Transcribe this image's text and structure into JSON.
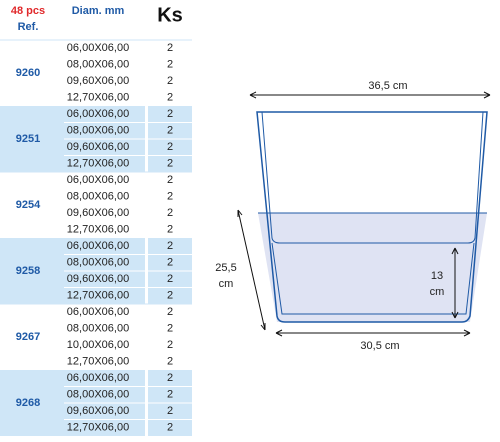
{
  "header": {
    "pcs": "48 pcs",
    "ref": "Ref.",
    "diam": "Diam. mm",
    "ks": "Ks"
  },
  "groups": [
    {
      "ref": "9260",
      "rows": [
        [
          "06,00X06,00",
          "2"
        ],
        [
          "08,00X06,00",
          "2"
        ],
        [
          "09,60X06,00",
          "2"
        ],
        [
          "12,70X06,00",
          "2"
        ]
      ]
    },
    {
      "ref": "9251",
      "rows": [
        [
          "06,00X06,00",
          "2"
        ],
        [
          "08,00X06,00",
          "2"
        ],
        [
          "09,60X06,00",
          "2"
        ],
        [
          "12,70X06,00",
          "2"
        ]
      ]
    },
    {
      "ref": "9254",
      "rows": [
        [
          "06,00X06,00",
          "2"
        ],
        [
          "08,00X06,00",
          "2"
        ],
        [
          "09,60X06,00",
          "2"
        ],
        [
          "12,70X06,00",
          "2"
        ]
      ]
    },
    {
      "ref": "9258",
      "rows": [
        [
          "06,00X06,00",
          "2"
        ],
        [
          "08,00X06,00",
          "2"
        ],
        [
          "09,60X06,00",
          "2"
        ],
        [
          "12,70X06,00",
          "2"
        ]
      ]
    },
    {
      "ref": "9267",
      "rows": [
        [
          "06,00X06,00",
          "2"
        ],
        [
          "08,00X06,00",
          "2"
        ],
        [
          "10,00X06,00",
          "2"
        ],
        [
          "12,70X06,00",
          "2"
        ]
      ]
    },
    {
      "ref": "9268",
      "rows": [
        [
          "06,00X06,00",
          "2"
        ],
        [
          "08,00X06,00",
          "2"
        ],
        [
          "09,60X06,00",
          "2"
        ],
        [
          "12,70X06,00",
          "2"
        ]
      ]
    }
  ],
  "diagram": {
    "top_width": "36,5 cm",
    "height": [
      "25,5",
      "cm"
    ],
    "inner_height": [
      "13",
      "cm"
    ],
    "bottom_width": "30,5 cm"
  }
}
